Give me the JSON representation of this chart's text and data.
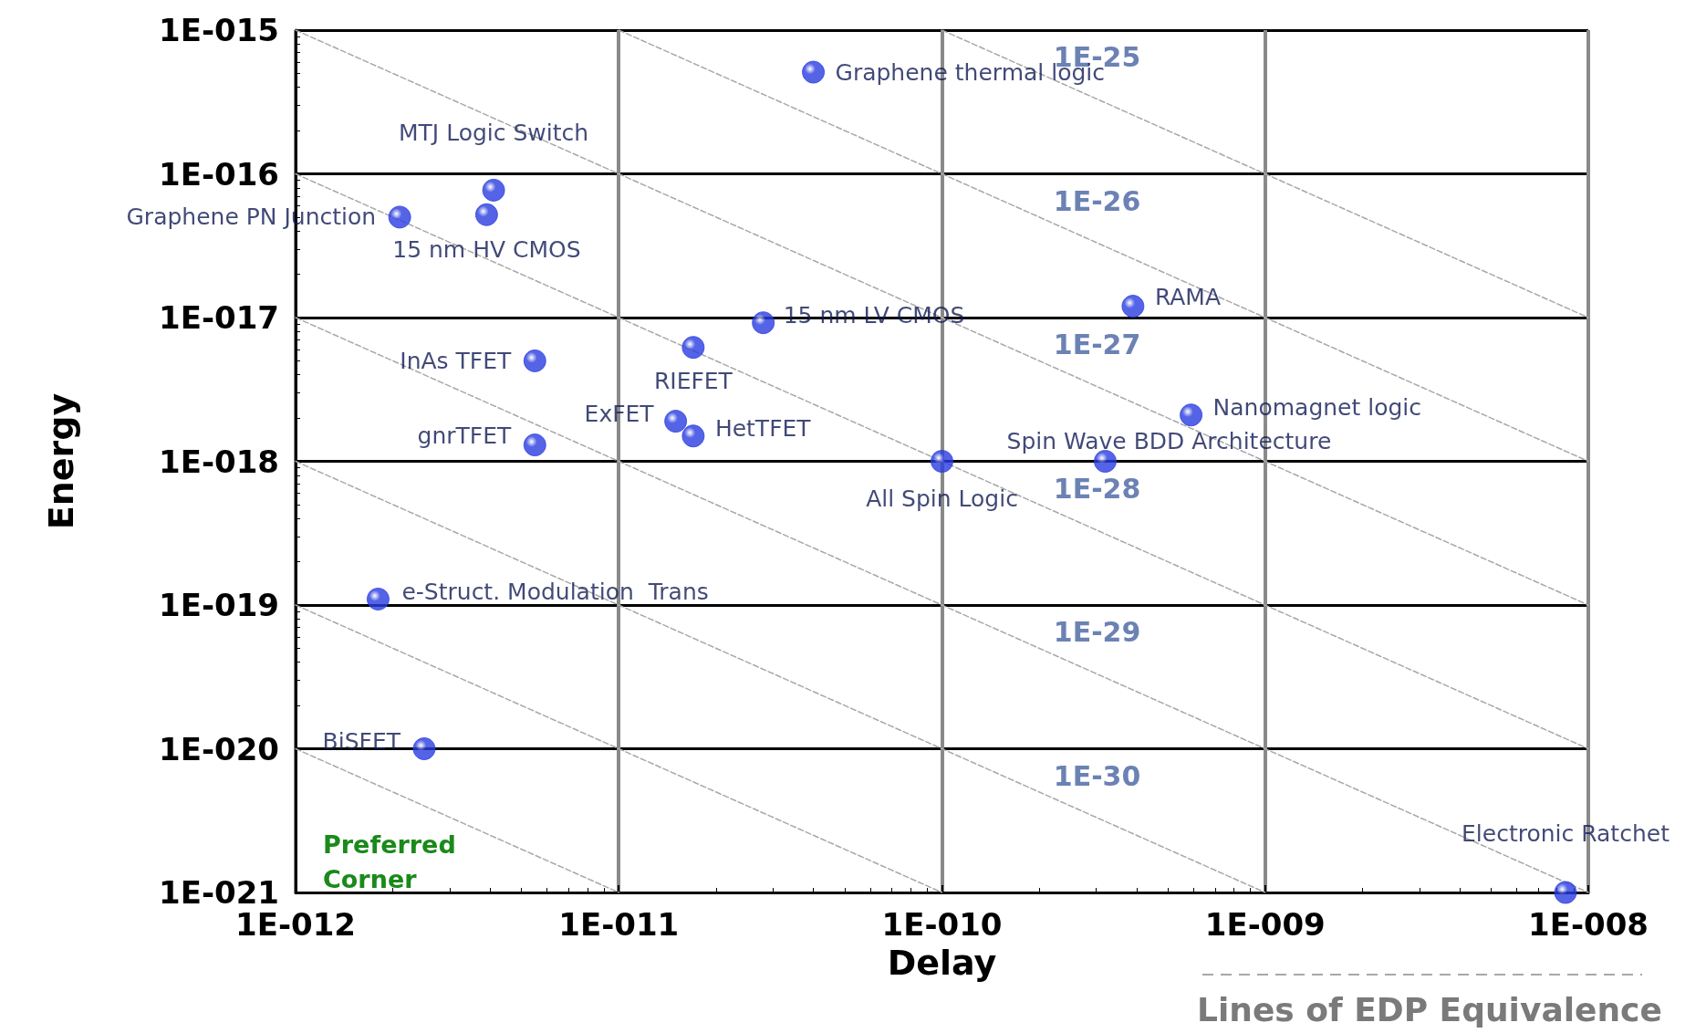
{
  "chart_data": {
    "type": "scatter",
    "xlabel": "Delay",
    "ylabel": "Energy",
    "log": "xy",
    "grid": true,
    "marker": "circle",
    "xlim": [
      1e-12,
      1e-08
    ],
    "xticks": [
      {
        "value": 1e-12,
        "label": "1E-012"
      },
      {
        "value": 1e-11,
        "label": "1E-011"
      },
      {
        "value": 1e-10,
        "label": "1E-010"
      },
      {
        "value": 1e-09,
        "label": "1E-009"
      },
      {
        "value": 1e-08,
        "label": "1E-008"
      }
    ],
    "ylim": [
      1e-21,
      1e-15
    ],
    "yticks": [
      {
        "value": 1e-21,
        "label": "1E-021"
      },
      {
        "value": 1e-20,
        "label": "1E-020"
      },
      {
        "value": 1e-19,
        "label": "1E-019"
      },
      {
        "value": 1e-18,
        "label": "1E-018"
      },
      {
        "value": 1e-17,
        "label": "1E-017"
      },
      {
        "value": 1e-16,
        "label": "1E-016"
      },
      {
        "value": 1e-15,
        "label": "1E-015"
      }
    ],
    "series": [
      {
        "type": "line",
        "name": "1E-25",
        "color": "#a8a8a8",
        "line_style": "dashed",
        "marker": "none",
        "x": [
          1e-10,
          1e-08
        ],
        "values": [
          1e-15,
          1e-17
        ]
      },
      {
        "type": "line",
        "name": "1E-26",
        "color": "#a8a8a8",
        "line_style": "dashed",
        "marker": "none",
        "x": [
          1e-11,
          1e-08
        ],
        "values": [
          1e-15,
          1e-18
        ]
      },
      {
        "type": "line",
        "name": "1E-27",
        "color": "#a8a8a8",
        "line_style": "dashed",
        "marker": "none",
        "x": [
          1e-12,
          1e-08
        ],
        "values": [
          1e-15,
          1e-19
        ]
      },
      {
        "type": "line",
        "name": "1E-28",
        "color": "#a8a8a8",
        "line_style": "dashed",
        "marker": "none",
        "x": [
          1e-12,
          1e-08
        ],
        "values": [
          1e-16,
          1e-20
        ]
      },
      {
        "type": "line",
        "name": "1E-29",
        "color": "#a8a8a8",
        "line_style": "dashed",
        "marker": "none",
        "x": [
          1e-12,
          1e-08
        ],
        "values": [
          1e-17,
          1e-21
        ]
      },
      {
        "type": "line",
        "name": "1E-30",
        "color": "#a8a8a8",
        "line_style": "dashed",
        "marker": "none",
        "x": [
          1e-12,
          1e-09
        ],
        "values": [
          1e-18,
          1e-21
        ]
      },
      {
        "type": "line",
        "color": "#a8a8a8",
        "line_style": "dashed",
        "marker": "none",
        "x": [
          1e-12,
          1e-10
        ],
        "values": [
          1e-19,
          1e-21
        ]
      },
      {
        "type": "line",
        "color": "#a8a8a8",
        "line_style": "dashed",
        "marker": "none",
        "x": [
          1e-12,
          1e-11
        ],
        "values": [
          1e-20,
          1e-21
        ]
      },
      {
        "color": "#2a3de0",
        "x": [
          4e-11,
          4.1e-12,
          2.1e-12,
          3.9e-12,
          2.8e-11,
          3.9e-10,
          5.5e-12,
          1.7e-11,
          1.5e-11,
          1.7e-11,
          5.5e-12,
          5.9e-10,
          3.2e-10,
          1e-10,
          1.8e-12,
          2.5e-12,
          8.5e-09
        ],
        "values": [
          5.1e-16,
          7.7e-17,
          5e-17,
          5.2e-17,
          9.2e-18,
          1.2e-17,
          5e-18,
          6.2e-18,
          1.9e-18,
          1.5e-18,
          1.3e-18,
          2.1e-18,
          1e-18,
          1e-18,
          1.1e-19,
          1e-20,
          1e-21
        ]
      }
    ],
    "annotations": [
      {
        "text": "Graphene thermal logic",
        "x": 4e-11,
        "y": 5.1e-16
      },
      {
        "text": "MTJ Logic Switch",
        "x": 4.1e-12,
        "y": 7.7e-17
      },
      {
        "text": "Graphene PN Junction",
        "x": 2.1e-12,
        "y": 5e-17
      },
      {
        "text": "15 nm HV CMOS",
        "x": 3.9e-12,
        "y": 5.2e-17
      },
      {
        "text": "15 nm LV CMOS",
        "x": 2.8e-11,
        "y": 9.2e-18
      },
      {
        "text": "RAMA",
        "x": 3.9e-10,
        "y": 1.2e-17
      },
      {
        "text": "InAs TFET",
        "x": 5.5e-12,
        "y": 5e-18
      },
      {
        "text": "RIEFET",
        "x": 1.7e-11,
        "y": 6.2e-18
      },
      {
        "text": "ExFET",
        "x": 1.5e-11,
        "y": 1.9e-18
      },
      {
        "text": "HetTFET",
        "x": 1.7e-11,
        "y": 1.5e-18
      },
      {
        "text": "gnrTFET",
        "x": 5.5e-12,
        "y": 1.3e-18
      },
      {
        "text": "Nanomagnet logic",
        "x": 5.9e-10,
        "y": 2.1e-18
      },
      {
        "text": "Spin Wave BDD Architecture",
        "x": 3.2e-10,
        "y": 1e-18
      },
      {
        "text": "All Spin Logic",
        "x": 1e-10,
        "y": 1e-18
      },
      {
        "text": "e-Struct. Modulation  Trans",
        "x": 1.8e-12,
        "y": 1.1e-19
      },
      {
        "text": "BiSFET",
        "x": 2.5e-12,
        "y": 1e-20
      },
      {
        "text": "Electronic Ratchet",
        "x": 8.5e-09,
        "y": 1e-21
      },
      "Preferred Corner",
      "Lines of EDP Equivalence"
    ]
  }
}
